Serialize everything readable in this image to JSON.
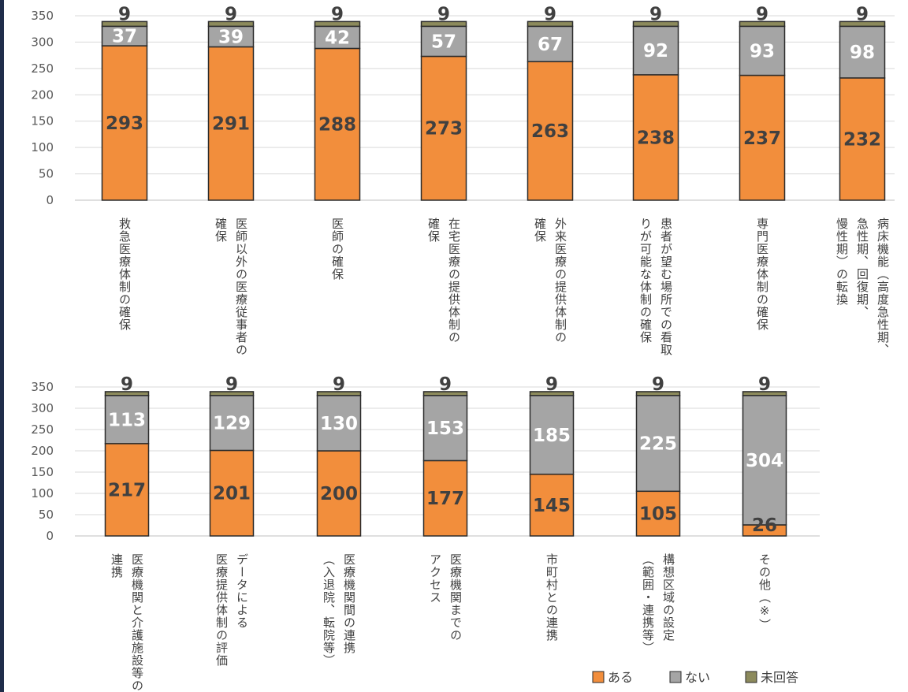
{
  "colors": {
    "aru": "#f28e3c",
    "nai": "#a5a5a5",
    "mikaito": "#8c8a5c",
    "stroke": "#2b2b2b",
    "grid": "#d9d9d9"
  },
  "legend": {
    "aru": "ある",
    "nai": "ない",
    "mikaito": "未回答"
  },
  "chart_data": [
    {
      "type": "bar",
      "stacked": true,
      "ylim": [
        0,
        350
      ],
      "yticks": [
        0,
        50,
        100,
        150,
        200,
        250,
        300,
        350
      ],
      "grid": true,
      "categories": [
        [
          "救急医療体制の確保"
        ],
        [
          "医師以外の医療従事者の",
          "確保"
        ],
        [
          "医師の確保"
        ],
        [
          "在宅医療の提供体制の",
          "確保"
        ],
        [
          "外来医療の提供体制の",
          "確保"
        ],
        [
          "患者が望む場所での看取",
          "りが可能な体制の確保"
        ],
        [
          "専門医療体制の確保"
        ],
        [
          "病床機能（高度急性期、",
          "急性期、回復期、",
          "慢性期）の転換"
        ]
      ],
      "series": [
        {
          "name": "ある",
          "values": [
            293,
            291,
            288,
            273,
            263,
            238,
            237,
            232
          ]
        },
        {
          "name": "ない",
          "values": [
            37,
            39,
            42,
            57,
            67,
            92,
            93,
            98
          ]
        },
        {
          "name": "未回答",
          "values": [
            9,
            9,
            9,
            9,
            9,
            9,
            9,
            9
          ]
        }
      ]
    },
    {
      "type": "bar",
      "stacked": true,
      "ylim": [
        0,
        350
      ],
      "yticks": [
        0,
        50,
        100,
        150,
        200,
        250,
        300,
        350
      ],
      "grid": true,
      "categories": [
        [
          "医療機関と介護施設等の",
          "連携"
        ],
        [
          "データによる",
          "医療提供体制の評価"
        ],
        [
          "医療機関間の連携",
          "（入退院、転院等）"
        ],
        [
          "医療機関までの",
          "アクセス"
        ],
        [
          "市町村との連携"
        ],
        [
          "構想区域の設定",
          "（範囲・連携等）"
        ],
        [
          "その他（※）"
        ]
      ],
      "series": [
        {
          "name": "ある",
          "values": [
            217,
            201,
            200,
            177,
            145,
            105,
            26
          ]
        },
        {
          "name": "ない",
          "values": [
            113,
            129,
            130,
            153,
            185,
            225,
            304
          ]
        },
        {
          "name": "未回答",
          "values": [
            9,
            9,
            9,
            9,
            9,
            9,
            9
          ]
        }
      ]
    }
  ]
}
